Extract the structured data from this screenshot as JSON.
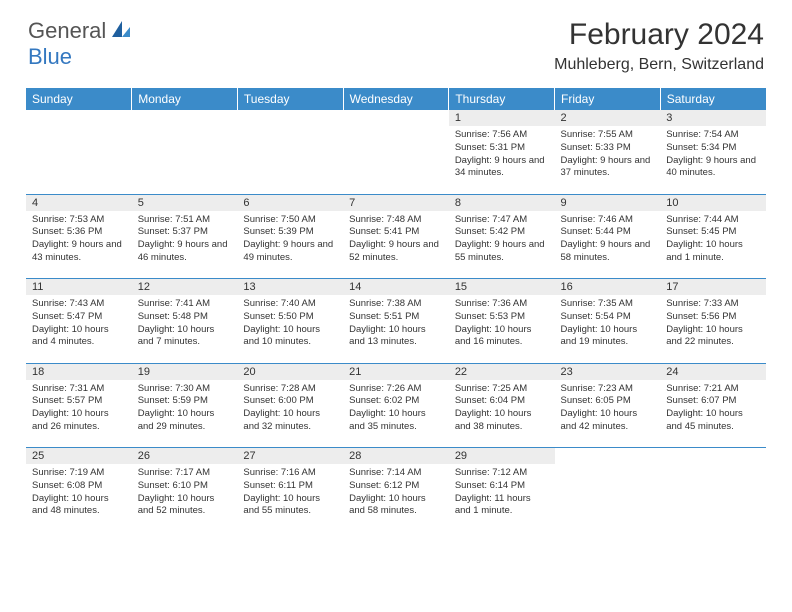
{
  "logo": {
    "text1": "General",
    "text2": "Blue"
  },
  "title": "February 2024",
  "location": "Muhleberg, Bern, Switzerland",
  "colors": {
    "header_bg": "#3b8bc9",
    "header_text": "#ffffff",
    "daynum_bg": "#ededed",
    "border": "#3b8bc9",
    "logo_blue": "#3478c0",
    "logo_gray": "#555555"
  },
  "day_headers": [
    "Sunday",
    "Monday",
    "Tuesday",
    "Wednesday",
    "Thursday",
    "Friday",
    "Saturday"
  ],
  "weeks": [
    [
      null,
      null,
      null,
      null,
      {
        "n": "1",
        "sr": "7:56 AM",
        "ss": "5:31 PM",
        "dl": "9 hours and 34 minutes."
      },
      {
        "n": "2",
        "sr": "7:55 AM",
        "ss": "5:33 PM",
        "dl": "9 hours and 37 minutes."
      },
      {
        "n": "3",
        "sr": "7:54 AM",
        "ss": "5:34 PM",
        "dl": "9 hours and 40 minutes."
      }
    ],
    [
      {
        "n": "4",
        "sr": "7:53 AM",
        "ss": "5:36 PM",
        "dl": "9 hours and 43 minutes."
      },
      {
        "n": "5",
        "sr": "7:51 AM",
        "ss": "5:37 PM",
        "dl": "9 hours and 46 minutes."
      },
      {
        "n": "6",
        "sr": "7:50 AM",
        "ss": "5:39 PM",
        "dl": "9 hours and 49 minutes."
      },
      {
        "n": "7",
        "sr": "7:48 AM",
        "ss": "5:41 PM",
        "dl": "9 hours and 52 minutes."
      },
      {
        "n": "8",
        "sr": "7:47 AM",
        "ss": "5:42 PM",
        "dl": "9 hours and 55 minutes."
      },
      {
        "n": "9",
        "sr": "7:46 AM",
        "ss": "5:44 PM",
        "dl": "9 hours and 58 minutes."
      },
      {
        "n": "10",
        "sr": "7:44 AM",
        "ss": "5:45 PM",
        "dl": "10 hours and 1 minute."
      }
    ],
    [
      {
        "n": "11",
        "sr": "7:43 AM",
        "ss": "5:47 PM",
        "dl": "10 hours and 4 minutes."
      },
      {
        "n": "12",
        "sr": "7:41 AM",
        "ss": "5:48 PM",
        "dl": "10 hours and 7 minutes."
      },
      {
        "n": "13",
        "sr": "7:40 AM",
        "ss": "5:50 PM",
        "dl": "10 hours and 10 minutes."
      },
      {
        "n": "14",
        "sr": "7:38 AM",
        "ss": "5:51 PM",
        "dl": "10 hours and 13 minutes."
      },
      {
        "n": "15",
        "sr": "7:36 AM",
        "ss": "5:53 PM",
        "dl": "10 hours and 16 minutes."
      },
      {
        "n": "16",
        "sr": "7:35 AM",
        "ss": "5:54 PM",
        "dl": "10 hours and 19 minutes."
      },
      {
        "n": "17",
        "sr": "7:33 AM",
        "ss": "5:56 PM",
        "dl": "10 hours and 22 minutes."
      }
    ],
    [
      {
        "n": "18",
        "sr": "7:31 AM",
        "ss": "5:57 PM",
        "dl": "10 hours and 26 minutes."
      },
      {
        "n": "19",
        "sr": "7:30 AM",
        "ss": "5:59 PM",
        "dl": "10 hours and 29 minutes."
      },
      {
        "n": "20",
        "sr": "7:28 AM",
        "ss": "6:00 PM",
        "dl": "10 hours and 32 minutes."
      },
      {
        "n": "21",
        "sr": "7:26 AM",
        "ss": "6:02 PM",
        "dl": "10 hours and 35 minutes."
      },
      {
        "n": "22",
        "sr": "7:25 AM",
        "ss": "6:04 PM",
        "dl": "10 hours and 38 minutes."
      },
      {
        "n": "23",
        "sr": "7:23 AM",
        "ss": "6:05 PM",
        "dl": "10 hours and 42 minutes."
      },
      {
        "n": "24",
        "sr": "7:21 AM",
        "ss": "6:07 PM",
        "dl": "10 hours and 45 minutes."
      }
    ],
    [
      {
        "n": "25",
        "sr": "7:19 AM",
        "ss": "6:08 PM",
        "dl": "10 hours and 48 minutes."
      },
      {
        "n": "26",
        "sr": "7:17 AM",
        "ss": "6:10 PM",
        "dl": "10 hours and 52 minutes."
      },
      {
        "n": "27",
        "sr": "7:16 AM",
        "ss": "6:11 PM",
        "dl": "10 hours and 55 minutes."
      },
      {
        "n": "28",
        "sr": "7:14 AM",
        "ss": "6:12 PM",
        "dl": "10 hours and 58 minutes."
      },
      {
        "n": "29",
        "sr": "7:12 AM",
        "ss": "6:14 PM",
        "dl": "11 hours and 1 minute."
      },
      null,
      null
    ]
  ],
  "labels": {
    "sunrise": "Sunrise:",
    "sunset": "Sunset:",
    "daylight": "Daylight:"
  }
}
